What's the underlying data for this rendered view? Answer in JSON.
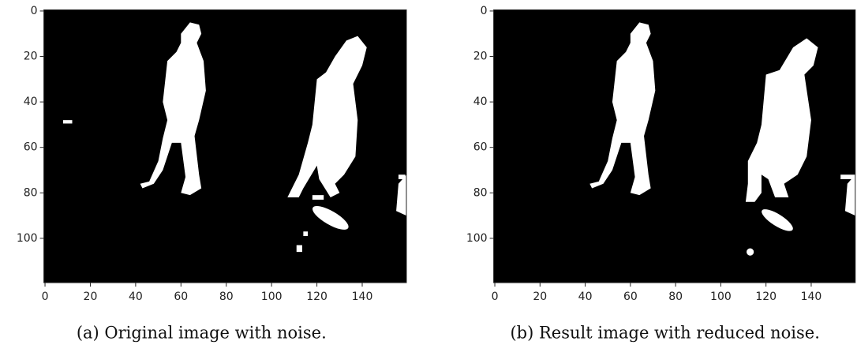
{
  "chart_data": [
    {
      "type": "image",
      "caption": "(a) Original image with noise.",
      "xlim": [
        -0.5,
        159.5
      ],
      "ylim": [
        119.5,
        -0.5
      ],
      "xticks": [
        0,
        20,
        40,
        60,
        80,
        100,
        120,
        140
      ],
      "yticks": [
        0,
        20,
        40,
        60,
        80,
        100
      ]
    },
    {
      "type": "image",
      "caption": "(b) Result image with reduced noise.",
      "xlim": [
        -0.5,
        159.5
      ],
      "ylim": [
        119.5,
        -0.5
      ],
      "xticks": [
        0,
        20,
        40,
        60,
        80,
        100,
        120,
        140
      ],
      "yticks": [
        0,
        20,
        40,
        60,
        80,
        100
      ]
    }
  ]
}
